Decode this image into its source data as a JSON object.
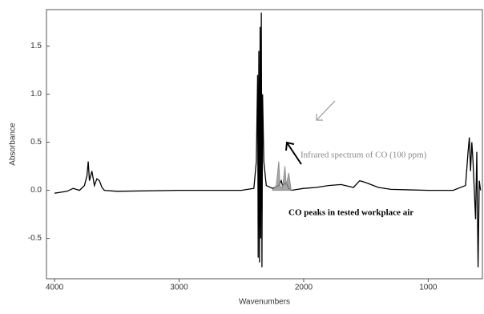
{
  "chart_data": {
    "type": "line",
    "x_label": "Wavenumbers",
    "y_label": "Absorbance",
    "annotations": [
      "Infrared spectrum of CO (100 ppm)",
      "CO peaks in tested workplace air"
    ],
    "xlim": [
      4065,
      565
    ],
    "ylim": [
      -0.92,
      1.88
    ],
    "xticks": [
      4000,
      3000,
      2000,
      1000
    ],
    "yticks": [
      -0.5,
      {
        "value": 0,
        "label": "0.0"
      },
      0.5,
      {
        "value": 1,
        "label": "1.0"
      },
      1.5
    ],
    "series": [
      {
        "name": "Tested workplace air",
        "color": "#000000",
        "x": [
          4000,
          3950,
          3900,
          3850,
          3800,
          3760,
          3740,
          3730,
          3720,
          3700,
          3680,
          3660,
          3640,
          3620,
          3600,
          3500,
          3000,
          2500,
          2400,
          2380,
          2370,
          2365,
          2360,
          2355,
          2350,
          2345,
          2340,
          2335,
          2330,
          2320,
          2300,
          2250,
          2200,
          2180,
          2170,
          2140,
          2120,
          2100,
          2000,
          1900,
          1800,
          1700,
          1600,
          1550,
          1500,
          1400,
          1300,
          1000,
          800,
          700,
          680,
          670,
          660,
          650,
          640,
          620,
          610,
          600,
          590,
          580
        ],
        "values": [
          -0.03,
          -0.02,
          -0.01,
          0.02,
          0.0,
          0.05,
          0.15,
          0.3,
          0.1,
          0.2,
          0.05,
          0.12,
          0.1,
          0.03,
          0.0,
          -0.01,
          0.0,
          0.0,
          0.02,
          0.3,
          1.2,
          -0.7,
          1.45,
          -0.75,
          1.7,
          -0.5,
          1.85,
          -0.8,
          1.0,
          0.3,
          0.05,
          0.02,
          0.05,
          0.1,
          0.05,
          0.08,
          0.02,
          0.0,
          0.02,
          0.03,
          0.05,
          0.06,
          0.03,
          0.1,
          0.08,
          0.03,
          0.01,
          0.0,
          0.0,
          0.05,
          0.4,
          0.55,
          0.2,
          0.5,
          0.3,
          -0.3,
          0.4,
          -0.8,
          0.1,
          0.0
        ]
      },
      {
        "name": "CO (100 ppm)",
        "color": "#909090",
        "x": [
          2250,
          2220,
          2200,
          2190,
          2170,
          2150,
          2140,
          2120,
          2100
        ],
        "values": [
          0,
          0.05,
          0.3,
          0.05,
          0.02,
          0.25,
          0.05,
          0.18,
          0.0
        ]
      }
    ]
  }
}
